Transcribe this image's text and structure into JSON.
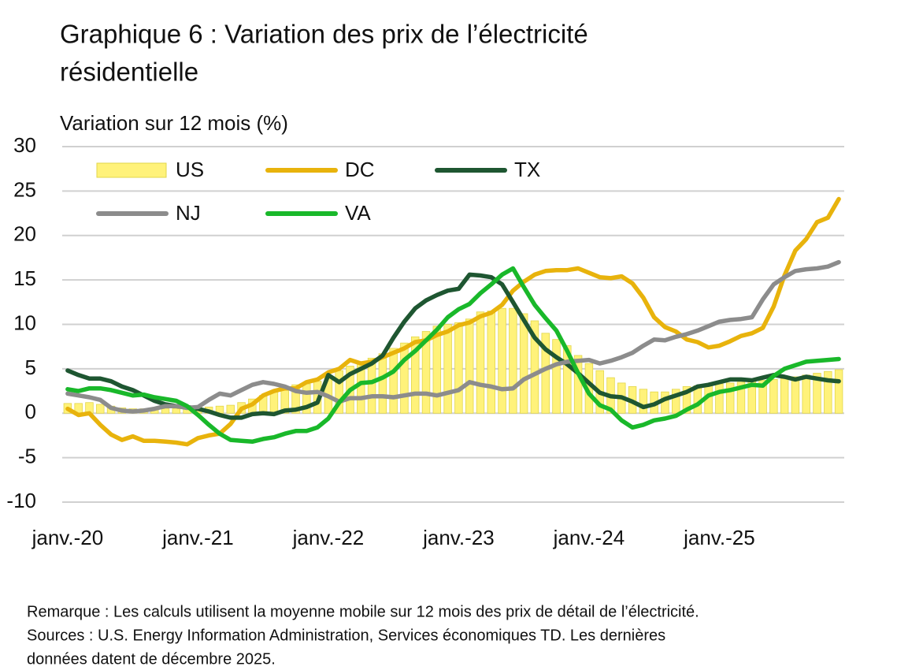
{
  "chart_data": {
    "type": "combo",
    "title": [
      "Graphique 6 : Variation des prix de l’électricité",
      "résidentielle"
    ],
    "y_label": "Variation sur 12 mois (%)",
    "notes": [
      "Remarque : Les calculs utilisent la moyenne mobile sur 12 mois des prix de détail de l’électricité.",
      "Sources : U.S. Energy Information Administration, Services économiques TD. Les dernières",
      "données datent de décembre 2025."
    ],
    "categories": [
      "janv.-20",
      null,
      null,
      null,
      null,
      null,
      null,
      null,
      null,
      null,
      null,
      null,
      "janv.-21",
      null,
      null,
      null,
      null,
      null,
      null,
      null,
      null,
      null,
      null,
      null,
      "janv.-22",
      null,
      null,
      null,
      null,
      null,
      null,
      null,
      null,
      null,
      null,
      null,
      "janv.-23",
      null,
      null,
      null,
      null,
      null,
      null,
      null,
      null,
      null,
      null,
      null,
      "janv.-24",
      null,
      null,
      null,
      null,
      null,
      null,
      null,
      null,
      null,
      null,
      null,
      "janv.-25",
      null,
      null,
      null,
      null,
      null,
      null,
      null,
      null,
      null,
      null,
      null
    ],
    "ylim": [
      -10,
      30
    ],
    "yticks": [
      -10,
      -5,
      0,
      5,
      10,
      15,
      20,
      25,
      30
    ],
    "grid": true,
    "series": [
      {
        "name": "US",
        "type": "bar",
        "color": "#fff27a",
        "values": [
          1.1,
          1.1,
          1.2,
          1.0,
          0.8,
          0.6,
          0.5,
          0.5,
          0.5,
          0.5,
          0.5,
          0.6,
          0.7,
          0.7,
          0.8,
          0.9,
          1.2,
          1.6,
          2.0,
          2.5,
          2.9,
          3.2,
          3.3,
          3.6,
          4.2,
          4.8,
          5.3,
          5.8,
          6.2,
          6.7,
          7.3,
          7.9,
          8.6,
          9.2,
          9.8,
          10.0,
          10.2,
          10.6,
          11.4,
          11.5,
          11.8,
          11.8,
          11.2,
          10.4,
          9.0,
          8.3,
          7.6,
          6.5,
          5.6,
          4.8,
          4.0,
          3.4,
          3.0,
          2.7,
          2.4,
          2.4,
          2.7,
          3.0,
          3.1,
          3.2,
          3.3,
          3.4,
          3.5,
          3.6,
          3.7,
          3.8,
          3.9,
          4.1,
          4.3,
          4.5,
          4.7,
          4.9
        ]
      },
      {
        "name": "DC",
        "type": "line",
        "color": "#e8b30c",
        "values": [
          0.5,
          -0.2,
          0,
          -1.3,
          -2.4,
          -3.0,
          -2.6,
          -3.1,
          -3.1,
          -3.2,
          -3.3,
          -3.5,
          -2.8,
          -2.5,
          -2.3,
          -1.2,
          0.5,
          1.0,
          2.0,
          2.5,
          2.8,
          2.8,
          3.5,
          3.8,
          4.6,
          5.0,
          6.0,
          5.6,
          5.8,
          6.3,
          6.8,
          7.3,
          8.0,
          8.2,
          8.8,
          9.2,
          9.9,
          10.2,
          10.9,
          11.3,
          12.2,
          13.8,
          14.8,
          15.6,
          16.0,
          16.1,
          16.1,
          16.3,
          15.8,
          15.3,
          15.2,
          15.4,
          14.6,
          13.0,
          10.8,
          9.7,
          9.2,
          8.3,
          8.0,
          7.4,
          7.6,
          8.1,
          8.7,
          9.0,
          9.6,
          12.0,
          15.5,
          18.3,
          19.6,
          21.5,
          22.0,
          24.1
        ]
      },
      {
        "name": "TX",
        "type": "line",
        "color": "#1e5631",
        "values": [
          4.8,
          4.3,
          3.9,
          3.9,
          3.6,
          3.0,
          2.6,
          2.0,
          1.4,
          1.0,
          0.8,
          0.7,
          0.5,
          0.2,
          -0.2,
          -0.5,
          -0.5,
          -0.1,
          0,
          -0.1,
          0.3,
          0.4,
          0.7,
          1.2,
          4.3,
          3.5,
          4.4,
          5.0,
          5.6,
          6.5,
          8.5,
          10.3,
          11.8,
          12.7,
          13.3,
          13.8,
          14.0,
          15.6,
          15.5,
          15.3,
          14.5,
          12.5,
          10.5,
          8.5,
          7.2,
          6.3,
          5.5,
          4.5,
          3.4,
          2.3,
          1.9,
          1.8,
          1.3,
          0.7,
          1.0,
          1.6,
          2.0,
          2.4,
          3.0,
          3.2,
          3.5,
          3.8,
          3.8,
          3.7,
          4.0,
          4.3,
          4.1,
          3.8,
          4.1,
          3.9,
          3.7,
          3.6
        ]
      },
      {
        "name": "NJ",
        "type": "line",
        "color": "#8c8c8c",
        "values": [
          2.2,
          2.0,
          1.8,
          1.5,
          0.6,
          0.3,
          0.2,
          0.3,
          0.5,
          0.8,
          0.8,
          0.6,
          0.7,
          1.5,
          2.2,
          2.0,
          2.6,
          3.2,
          3.5,
          3.3,
          3.0,
          2.5,
          2.3,
          2.4,
          1.9,
          1.3,
          1.7,
          1.7,
          1.9,
          1.9,
          1.8,
          2.0,
          2.2,
          2.2,
          2.0,
          2.3,
          2.6,
          3.5,
          3.2,
          3.0,
          2.7,
          2.8,
          3.8,
          4.4,
          5.0,
          5.5,
          5.8,
          5.9,
          6.0,
          5.6,
          5.9,
          6.3,
          6.8,
          7.6,
          8.3,
          8.2,
          8.6,
          8.9,
          9.3,
          9.8,
          10.3,
          10.5,
          10.6,
          10.8,
          12.8,
          14.5,
          15.3,
          16.0,
          16.2,
          16.3,
          16.5,
          17.0
        ]
      },
      {
        "name": "VA",
        "type": "line",
        "color": "#19b82a",
        "values": [
          2.7,
          2.5,
          2.8,
          2.8,
          2.6,
          2.3,
          2.0,
          2.1,
          1.8,
          1.6,
          1.4,
          0.8,
          -0.2,
          -1.3,
          -2.3,
          -3.0,
          -3.1,
          -3.2,
          -2.9,
          -2.7,
          -2.3,
          -2.0,
          -2.0,
          -1.6,
          -0.6,
          1.2,
          2.6,
          3.4,
          3.5,
          4.0,
          4.7,
          6.0,
          7.0,
          8.2,
          9.4,
          10.8,
          11.7,
          12.3,
          13.5,
          14.5,
          15.6,
          16.3,
          14.2,
          12.2,
          10.7,
          9.3,
          7.0,
          4.5,
          2.2,
          0.9,
          0.4,
          -0.8,
          -1.6,
          -1.3,
          -0.8,
          -0.6,
          -0.3,
          0.4,
          1.0,
          2.0,
          2.4,
          2.6,
          2.9,
          3.2,
          3.1,
          4.2,
          5.0,
          5.4,
          5.8,
          5.9,
          6.0,
          6.1
        ]
      }
    ]
  }
}
